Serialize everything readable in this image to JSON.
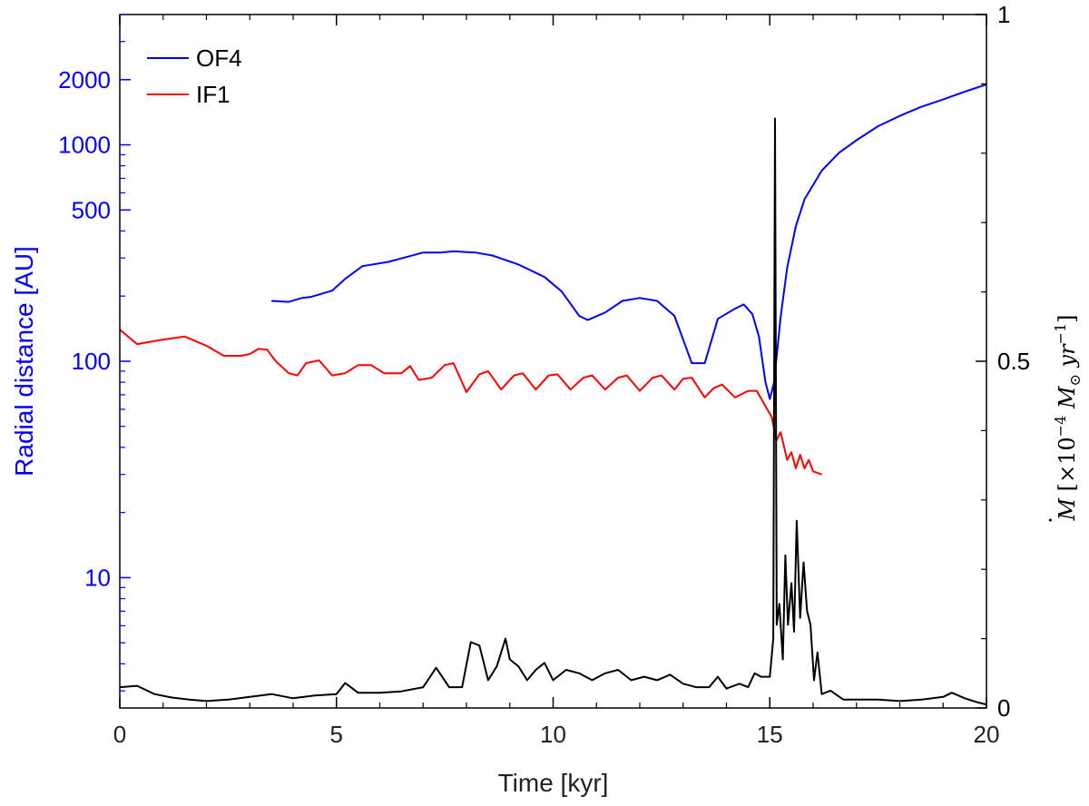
{
  "chart_data": {
    "type": "line",
    "title": "",
    "xlabel": "Time [kyr]",
    "xlim": [
      0,
      20
    ],
    "xticks": [
      0,
      5,
      10,
      15,
      20
    ],
    "grid": false,
    "legend_position": "top-left",
    "left_axis": {
      "label": "Radial distance [AU]",
      "scale": "log",
      "ylim": [
        2.5,
        4000
      ],
      "ticks": [
        10,
        100,
        500,
        1000,
        2000
      ],
      "tick_labels": [
        "10",
        "100",
        "500",
        "1000",
        "2000"
      ],
      "color": "#0000ff"
    },
    "right_axis": {
      "label_parts": {
        "prefix": "M",
        "bracket_open": " [×10",
        "exponent1": "−4",
        "unit_main": " M",
        "unit_sub": "⊙",
        "unit_yr": " yr",
        "exponent2": "−1",
        "bracket_close": "]"
      },
      "scale": "linear",
      "ylim": [
        0,
        1
      ],
      "ticks": [
        0,
        0.5,
        1
      ],
      "tick_labels": [
        "0",
        "0.5",
        "1"
      ],
      "color": "#000000"
    },
    "series": [
      {
        "name": "OF4",
        "axis": "left",
        "color": "#0000ff",
        "points": [
          [
            3.5,
            190
          ],
          [
            3.9,
            188
          ],
          [
            4.2,
            196
          ],
          [
            4.4,
            198
          ],
          [
            4.9,
            212
          ],
          [
            5.2,
            240
          ],
          [
            5.6,
            275
          ],
          [
            6.2,
            288
          ],
          [
            6.8,
            310
          ],
          [
            7.0,
            318
          ],
          [
            7.4,
            318
          ],
          [
            7.7,
            322
          ],
          [
            8.2,
            318
          ],
          [
            8.6,
            308
          ],
          [
            9.2,
            280
          ],
          [
            9.8,
            245
          ],
          [
            10.2,
            210
          ],
          [
            10.6,
            162
          ],
          [
            10.8,
            155
          ],
          [
            11.2,
            168
          ],
          [
            11.6,
            190
          ],
          [
            12.0,
            196
          ],
          [
            12.4,
            190
          ],
          [
            12.8,
            162
          ],
          [
            13.2,
            98
          ],
          [
            13.5,
            98
          ],
          [
            13.8,
            157
          ],
          [
            14.2,
            175
          ],
          [
            14.4,
            183
          ],
          [
            14.6,
            165
          ],
          [
            14.75,
            130
          ],
          [
            14.9,
            80
          ],
          [
            15.0,
            67
          ],
          [
            15.1,
            80
          ],
          [
            15.25,
            160
          ],
          [
            15.4,
            270
          ],
          [
            15.6,
            420
          ],
          [
            15.8,
            560
          ],
          [
            16.2,
            760
          ],
          [
            16.6,
            920
          ],
          [
            17.0,
            1050
          ],
          [
            17.5,
            1220
          ],
          [
            18.0,
            1360
          ],
          [
            18.5,
            1500
          ],
          [
            19.0,
            1620
          ],
          [
            19.5,
            1760
          ],
          [
            20.0,
            1900
          ]
        ]
      },
      {
        "name": "IF1",
        "axis": "left",
        "color": "#ff0000",
        "points": [
          [
            0.0,
            140
          ],
          [
            0.4,
            120
          ],
          [
            0.9,
            125
          ],
          [
            1.5,
            130
          ],
          [
            2.0,
            118
          ],
          [
            2.4,
            106
          ],
          [
            2.8,
            106
          ],
          [
            3.0,
            108
          ],
          [
            3.2,
            114
          ],
          [
            3.4,
            113
          ],
          [
            3.6,
            100
          ],
          [
            3.9,
            88
          ],
          [
            4.1,
            86
          ],
          [
            4.3,
            98
          ],
          [
            4.6,
            101
          ],
          [
            4.9,
            86
          ],
          [
            5.2,
            88
          ],
          [
            5.5,
            96
          ],
          [
            5.8,
            96
          ],
          [
            6.1,
            88
          ],
          [
            6.5,
            88
          ],
          [
            6.7,
            95
          ],
          [
            6.9,
            82
          ],
          [
            7.2,
            84
          ],
          [
            7.5,
            96
          ],
          [
            7.7,
            98
          ],
          [
            8.0,
            72
          ],
          [
            8.3,
            87
          ],
          [
            8.5,
            90
          ],
          [
            8.8,
            74
          ],
          [
            9.1,
            86
          ],
          [
            9.3,
            88
          ],
          [
            9.6,
            74
          ],
          [
            9.9,
            86
          ],
          [
            10.1,
            87
          ],
          [
            10.4,
            74
          ],
          [
            10.7,
            84
          ],
          [
            10.9,
            86
          ],
          [
            11.2,
            74
          ],
          [
            11.5,
            84
          ],
          [
            11.7,
            86
          ],
          [
            12.0,
            73
          ],
          [
            12.3,
            84
          ],
          [
            12.5,
            86
          ],
          [
            12.8,
            74
          ],
          [
            13.0,
            83
          ],
          [
            13.2,
            84
          ],
          [
            13.5,
            68
          ],
          [
            13.7,
            75
          ],
          [
            13.9,
            78
          ],
          [
            14.2,
            68
          ],
          [
            14.5,
            73
          ],
          [
            14.7,
            73
          ],
          [
            14.9,
            62
          ],
          [
            15.05,
            55
          ],
          [
            15.15,
            43
          ],
          [
            15.25,
            47
          ],
          [
            15.4,
            35
          ],
          [
            15.5,
            38
          ],
          [
            15.6,
            32
          ],
          [
            15.7,
            37
          ],
          [
            15.8,
            32
          ],
          [
            15.9,
            35
          ],
          [
            16.0,
            31
          ],
          [
            16.2,
            30
          ]
        ]
      },
      {
        "name": "Mdot",
        "axis": "right",
        "color": "#000000",
        "points": [
          [
            0.0,
            0.03
          ],
          [
            0.4,
            0.032
          ],
          [
            0.8,
            0.02
          ],
          [
            1.2,
            0.015
          ],
          [
            1.6,
            0.012
          ],
          [
            2.0,
            0.01
          ],
          [
            2.5,
            0.012
          ],
          [
            3.0,
            0.016
          ],
          [
            3.5,
            0.02
          ],
          [
            4.0,
            0.014
          ],
          [
            4.5,
            0.018
          ],
          [
            5.0,
            0.02
          ],
          [
            5.2,
            0.036
          ],
          [
            5.5,
            0.022
          ],
          [
            6.0,
            0.022
          ],
          [
            6.5,
            0.024
          ],
          [
            7.0,
            0.03
          ],
          [
            7.3,
            0.058
          ],
          [
            7.6,
            0.03
          ],
          [
            7.9,
            0.03
          ],
          [
            8.1,
            0.095
          ],
          [
            8.3,
            0.09
          ],
          [
            8.5,
            0.04
          ],
          [
            8.7,
            0.06
          ],
          [
            8.9,
            0.1
          ],
          [
            9.0,
            0.07
          ],
          [
            9.2,
            0.06
          ],
          [
            9.4,
            0.04
          ],
          [
            9.6,
            0.055
          ],
          [
            9.8,
            0.065
          ],
          [
            10.0,
            0.04
          ],
          [
            10.3,
            0.055
          ],
          [
            10.6,
            0.05
          ],
          [
            10.9,
            0.04
          ],
          [
            11.2,
            0.05
          ],
          [
            11.5,
            0.055
          ],
          [
            11.8,
            0.04
          ],
          [
            12.1,
            0.045
          ],
          [
            12.4,
            0.04
          ],
          [
            12.7,
            0.048
          ],
          [
            13.0,
            0.035
          ],
          [
            13.3,
            0.03
          ],
          [
            13.6,
            0.03
          ],
          [
            13.8,
            0.045
          ],
          [
            14.0,
            0.028
          ],
          [
            14.3,
            0.035
          ],
          [
            14.5,
            0.03
          ],
          [
            14.65,
            0.05
          ],
          [
            14.8,
            0.045
          ],
          [
            15.0,
            0.045
          ],
          [
            15.08,
            0.1
          ],
          [
            15.12,
            0.85
          ],
          [
            15.16,
            0.12
          ],
          [
            15.22,
            0.15
          ],
          [
            15.3,
            0.07
          ],
          [
            15.36,
            0.22
          ],
          [
            15.42,
            0.12
          ],
          [
            15.5,
            0.18
          ],
          [
            15.56,
            0.11
          ],
          [
            15.62,
            0.27
          ],
          [
            15.7,
            0.13
          ],
          [
            15.78,
            0.21
          ],
          [
            15.86,
            0.14
          ],
          [
            15.94,
            0.12
          ],
          [
            16.02,
            0.04
          ],
          [
            16.1,
            0.08
          ],
          [
            16.2,
            0.02
          ],
          [
            16.4,
            0.025
          ],
          [
            16.7,
            0.012
          ],
          [
            17.0,
            0.012
          ],
          [
            17.5,
            0.012
          ],
          [
            18.0,
            0.01
          ],
          [
            18.5,
            0.012
          ],
          [
            19.0,
            0.016
          ],
          [
            19.2,
            0.022
          ],
          [
            19.5,
            0.014
          ],
          [
            19.8,
            0.008
          ],
          [
            20.0,
            0.005
          ]
        ]
      }
    ]
  }
}
